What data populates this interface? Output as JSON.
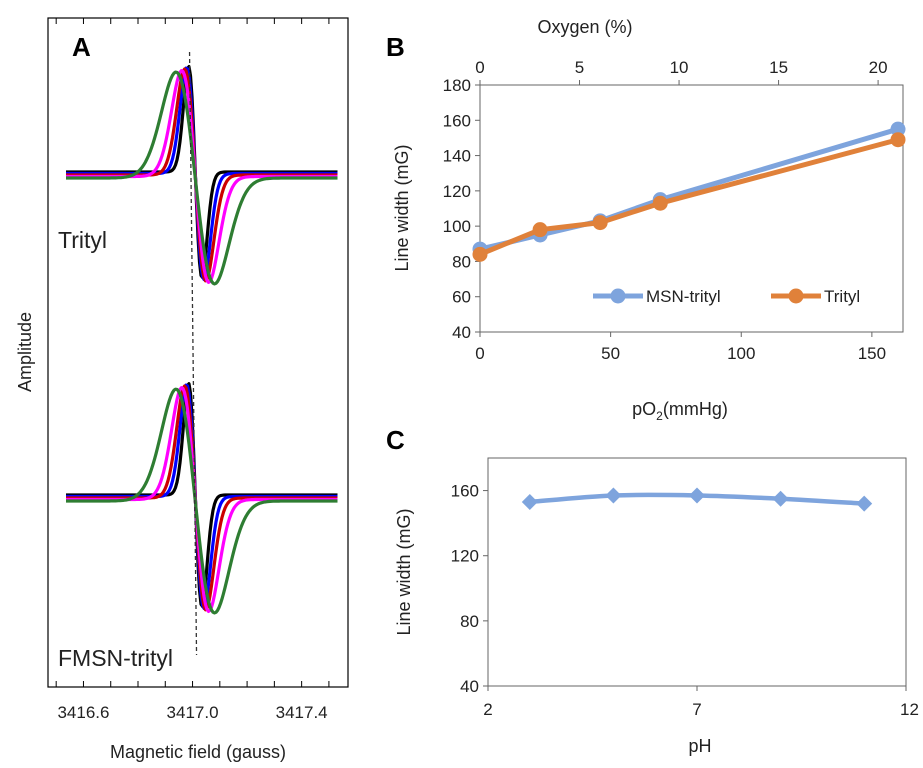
{
  "panels": {
    "A": "A",
    "B": "B",
    "C": "C"
  },
  "chart_data": [
    {
      "id": "A",
      "type": "line",
      "xlabel": "Magnetic field (gauss)",
      "ylabel": "Amplitude",
      "xlim": [
        3416.47,
        3417.57
      ],
      "xticks": [
        "3416.6",
        "3417.0",
        "3417.4"
      ],
      "xtick_values": [
        3416.6,
        3417.0,
        3417.4
      ],
      "center_line": 3417.0,
      "annotations": [
        "Trityl",
        "FMSN-trityl"
      ],
      "series_colors": [
        "#000000",
        "#0000ff",
        "#cc0000",
        "#ff00ff",
        "#2e7d32"
      ],
      "series_widths_gauss": [
        0.035,
        0.045,
        0.055,
        0.07,
        0.1
      ]
    },
    {
      "id": "B",
      "type": "line",
      "xlabel": "pO₂(mmHg)",
      "xlabel_main": "pO",
      "xlabel_sub": "2",
      "xlabel_unit": "(mmHg)",
      "x2label": "Oxygen (%)",
      "ylabel": "Line width (mG)",
      "xlim": [
        0,
        160
      ],
      "ylim": [
        40,
        180
      ],
      "xticks": [
        0,
        50,
        100,
        150
      ],
      "yticks": [
        40,
        60,
        80,
        100,
        120,
        140,
        160,
        180
      ],
      "x2lim": [
        0,
        21
      ],
      "x2ticks": [
        0,
        5,
        10,
        15,
        20
      ],
      "legend": "bottom-right",
      "series": [
        {
          "name": "MSN-trityl",
          "color": "#7ea4dd",
          "x": [
            0,
            23,
            46,
            69,
            160
          ],
          "y": [
            87,
            95,
            103,
            115,
            155
          ]
        },
        {
          "name": "Trityl",
          "color": "#e0813a",
          "x": [
            0,
            23,
            46,
            69,
            160
          ],
          "y": [
            84,
            98,
            102,
            113,
            149
          ]
        }
      ]
    },
    {
      "id": "C",
      "type": "line",
      "xlabel": "pH",
      "ylabel": "Line width (mG)",
      "xlim": [
        2,
        12
      ],
      "ylim": [
        40,
        180
      ],
      "xticks": [
        2,
        7,
        12
      ],
      "yticks": [
        40,
        80,
        120,
        160
      ],
      "series": [
        {
          "color": "#7ea4dd",
          "x": [
            3,
            5,
            7,
            9,
            11
          ],
          "y": [
            153,
            157,
            157,
            155,
            152
          ]
        }
      ]
    }
  ]
}
